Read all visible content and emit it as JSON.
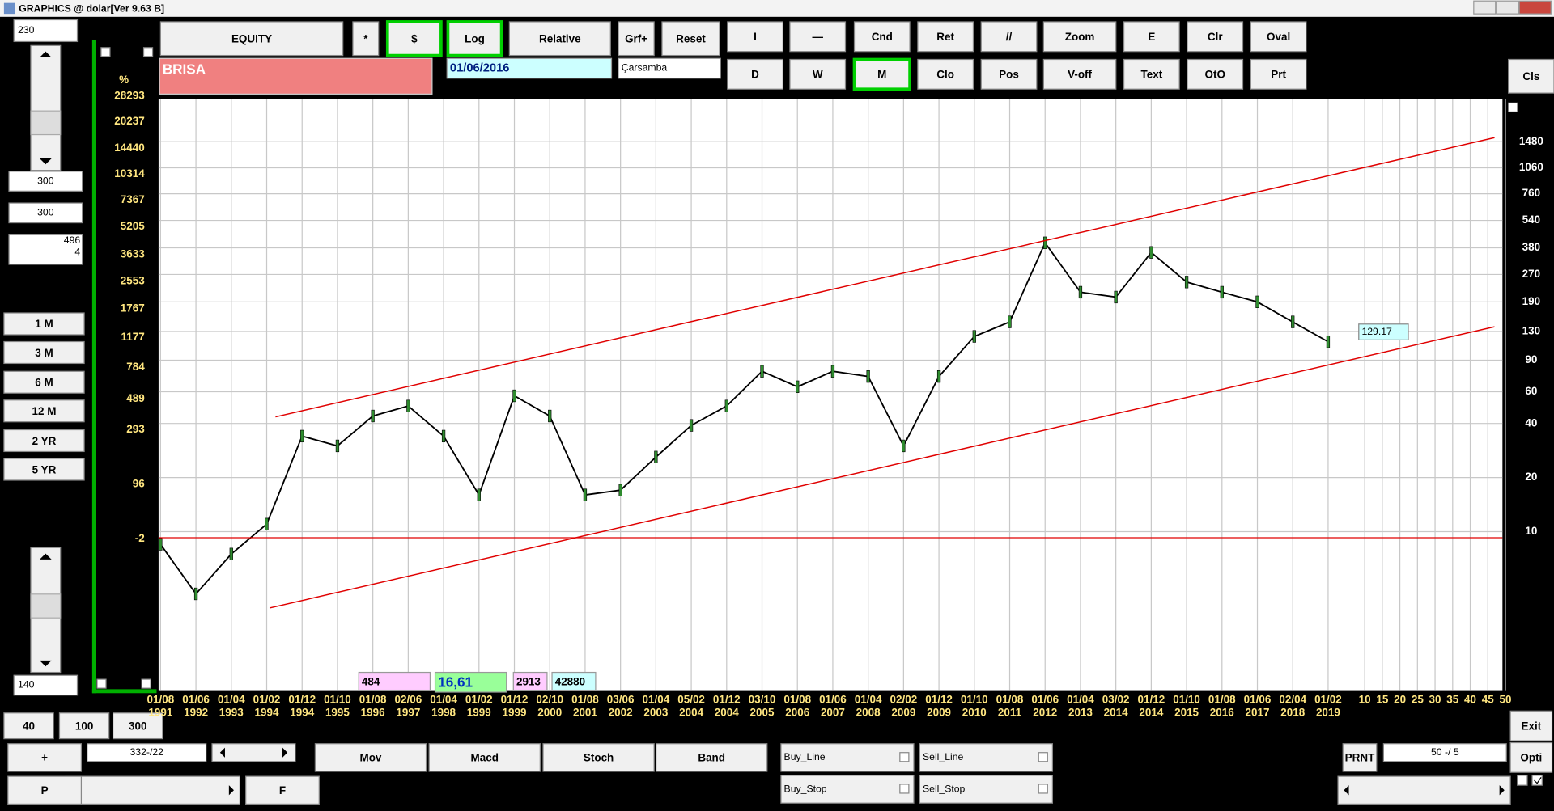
{
  "title_bar": "GRAPHICS  @ dolar[Ver 9.63 B]",
  "buttons": [
    "EQUITY",
    "*",
    "$",
    "Log",
    "Relative",
    "Grf+",
    "Reset",
    "I",
    "—",
    "Cnd",
    "Ret",
    "//",
    "Zoom",
    "E",
    "Clr",
    "Oval",
    "D",
    "W",
    "M",
    "Clo",
    "Pos",
    "V-off",
    "Text",
    "OtO",
    "Prt",
    "Cls",
    "1 M",
    "3 M",
    "6 M",
    "12 M",
    "2 YR",
    "5 YR",
    "40",
    "100",
    "300",
    "+",
    "P",
    "F",
    "Mov",
    "Macd",
    "Stoch",
    "Band",
    "PRNT",
    "Exit",
    "Opti"
  ],
  "active_buttons": [
    2,
    3,
    18
  ],
  "fields": [
    "230",
    "300",
    "300",
    "140",
    "332-/22",
    "50 -/ 5"
  ],
  "counter_box": [
    "496",
    "4"
  ],
  "checks": [
    "Buy_Line",
    "Sell_Line",
    "Buy_Stop",
    "Sell_Stop"
  ],
  "symbol": "BRISA",
  "date": "01/06/2016",
  "weekday": "Çarsamba",
  "info_boxes": [
    "484",
    "16,61",
    "2913",
    "42880"
  ],
  "chart": {
    "left_axis_unit": "%",
    "left_axis_labels": [
      28293,
      20237,
      14440,
      10314,
      7367,
      5205,
      3633,
      2553,
      1767,
      1177,
      784,
      489,
      293,
      96,
      -2
    ],
    "log": true,
    "ylim": [
      1.31,
      2558
    ],
    "yticks": [
      10,
      20,
      40,
      60,
      90,
      130,
      190,
      270,
      380,
      540,
      760,
      1060,
      1480
    ],
    "grid": true,
    "x_dates": [
      "01/08",
      "01/06",
      "01/04",
      "01/02",
      "01/12",
      "01/10",
      "01/08",
      "02/06",
      "01/04",
      "01/02",
      "01/12",
      "02/10",
      "01/08",
      "03/06",
      "01/04",
      "05/02",
      "01/12",
      "03/10",
      "01/08",
      "01/06",
      "01/04",
      "02/02",
      "01/12",
      "01/10",
      "01/08",
      "01/06",
      "01/04",
      "03/02",
      "01/12",
      "01/10",
      "01/08",
      "01/06",
      "02/04",
      "01/02"
    ],
    "x_years": [
      "1991",
      "1992",
      "1993",
      "1994",
      "1994",
      "1995",
      "1996",
      "1997",
      "1998",
      "1999",
      "1999",
      "2000",
      "2001",
      "2002",
      "2003",
      "2004",
      "2004",
      "2005",
      "2006",
      "2007",
      "2008",
      "2009",
      "2009",
      "2010",
      "2011",
      "2012",
      "2013",
      "2014",
      "2014",
      "2015",
      "2016",
      "2017",
      "2018",
      "2019"
    ],
    "x_extra": [
      10,
      15,
      20,
      25,
      30,
      35,
      40,
      45,
      50
    ],
    "values": [
      8.5,
      4.5,
      7.5,
      11,
      34,
      30,
      44,
      50,
      34,
      16,
      57,
      44,
      16,
      17,
      26,
      39,
      50,
      78,
      64,
      78,
      73,
      30,
      73,
      122,
      147,
      405,
      215,
      202,
      358,
      245,
      215,
      190,
      147,
      114
    ],
    "color": "#000000",
    "last_price": 129.17
  }
}
